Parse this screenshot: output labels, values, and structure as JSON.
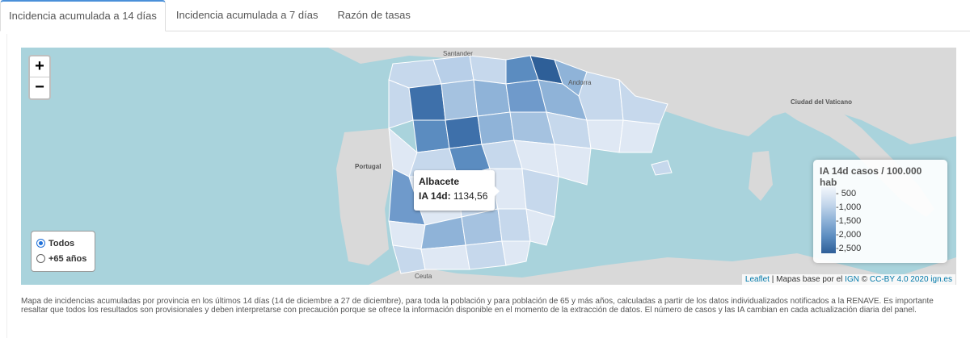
{
  "tabs": [
    {
      "label": "Incidencia acumulada a 14 días",
      "active": true
    },
    {
      "label": "Incidencia acumulada a 7 días",
      "active": false
    },
    {
      "label": "Razón de tasas",
      "active": false
    }
  ],
  "map": {
    "zoom_in_label": "+",
    "zoom_out_label": "−",
    "place_labels": [
      "Santander",
      "Andorra",
      "Ciudad del Vaticano",
      "Portugal",
      "Ceuta"
    ],
    "colors": {
      "sea": "#a9d3dc",
      "land": "#d9d9d9",
      "low": "#f2f6fb",
      "high": "#2e5f98"
    }
  },
  "tooltip": {
    "province": "Albacete",
    "label": "IA 14d:",
    "value": "1134,56"
  },
  "population_filter": {
    "options": [
      {
        "label": "Todos",
        "selected": true
      },
      {
        "label": "+65 años",
        "selected": false
      }
    ]
  },
  "legend": {
    "title": "IA 14d casos / 100.000 hab",
    "ticks": [
      "500",
      "1,000",
      "1,500",
      "2,000",
      "2,500"
    ]
  },
  "attribution": {
    "leaflet": "Leaflet",
    "text": "| Mapas base por el",
    "ign": "IGN",
    "license": "CC-BY 4.0 2020 ign.es"
  },
  "caption": "Mapa de incidencias acumuladas por provincia en los últimos 14 días (14 de diciembre a 27 de diciembre), para toda la población y para población de 65 y más años, calculadas a partir de los datos individualizados notificados a la RENAVE. Es importante resaltar que todos los resultados son provisionales y deben interpretarse con precaución porque se ofrece la información disponible en el momento de la extracción de datos. El número de casos y las IA cambian en cada actualización diaria del panel."
}
